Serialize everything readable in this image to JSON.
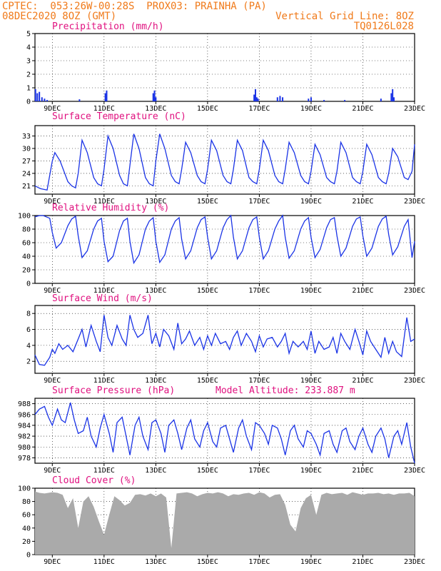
{
  "header": {
    "line1_left": "CPTEC:  053:26W-00:28S  PROX03: PRAINHA (PA)",
    "line2_left": "08DEC2020 8OZ (GMT)",
    "line2_right": "Vertical Grid Line: 8OZ",
    "line3_right": "TQ0126L028"
  },
  "colors": {
    "header": "#f07a1a",
    "title": "#e0107f",
    "line": "#1a33e6",
    "bar": "#1a33e6",
    "cloud": "#aaaaaa"
  },
  "x_tick_labels": [
    "9DEC",
    "11DEC",
    "13DEC",
    "15DEC",
    "17DEC",
    "19DEC",
    "21DEC",
    "23DEC"
  ],
  "chart_data": [
    {
      "type": "bar",
      "title": "Precipitation (mm/h)",
      "ylim": [
        0,
        5
      ],
      "yticks": [
        0,
        1,
        2,
        3,
        4,
        5
      ],
      "xrange_days": [
        8.33,
        23.0
      ],
      "x": [
        8.35,
        8.42,
        8.5,
        8.6,
        8.7,
        8.8,
        10.05,
        11.05,
        11.1,
        12.9,
        12.95,
        13.0,
        16.8,
        16.85,
        16.9,
        16.95,
        17.7,
        17.8,
        17.9,
        18.9,
        19.0,
        19.5,
        20.3,
        21.7,
        22.1,
        22.15,
        22.2
      ],
      "values": [
        0.9,
        0.6,
        0.7,
        0.3,
        0.2,
        0.1,
        0.15,
        0.6,
        0.8,
        0.6,
        0.8,
        0.3,
        0.5,
        0.9,
        0.3,
        0.2,
        0.3,
        0.4,
        0.3,
        0.2,
        0.3,
        0.1,
        0.1,
        0.2,
        0.6,
        0.9,
        0.3
      ]
    },
    {
      "type": "line",
      "title": "Surface Temperature (nC)",
      "ylim": [
        19,
        35.5
      ],
      "yticks": [
        21,
        24,
        27,
        30,
        33
      ],
      "x": [
        8.33,
        8.45,
        8.55,
        8.8,
        9.0,
        9.1,
        9.3,
        9.6,
        9.75,
        9.9,
        10.0,
        10.15,
        10.35,
        10.6,
        10.75,
        10.9,
        11.0,
        11.15,
        11.35,
        11.6,
        11.75,
        11.9,
        12.0,
        12.15,
        12.35,
        12.6,
        12.75,
        12.9,
        13.0,
        13.15,
        13.35,
        13.6,
        13.75,
        13.9,
        14.0,
        14.15,
        14.35,
        14.6,
        14.75,
        14.9,
        15.0,
        15.15,
        15.35,
        15.6,
        15.75,
        15.9,
        16.0,
        16.15,
        16.35,
        16.6,
        16.75,
        16.9,
        17.0,
        17.15,
        17.35,
        17.6,
        17.75,
        17.9,
        18.0,
        18.15,
        18.35,
        18.6,
        18.75,
        18.9,
        19.0,
        19.15,
        19.35,
        19.6,
        19.75,
        19.9,
        20.0,
        20.15,
        20.35,
        20.6,
        20.75,
        20.9,
        21.0,
        21.15,
        21.35,
        21.6,
        21.75,
        21.9,
        22.0,
        22.15,
        22.35,
        22.6,
        22.75,
        22.9,
        23.0
      ],
      "values": [
        21.0,
        20.6,
        20.3,
        20.0,
        27.0,
        29.0,
        27.0,
        22.0,
        21.0,
        20.5,
        24.0,
        32.0,
        29.0,
        23.0,
        21.5,
        21.0,
        25.0,
        33.0,
        30.0,
        23.5,
        21.5,
        21.0,
        26.0,
        33.5,
        30.0,
        23.0,
        21.5,
        21.0,
        27.0,
        33.5,
        30.0,
        23.5,
        22.0,
        21.5,
        25.0,
        31.5,
        29.0,
        23.5,
        22.0,
        21.5,
        25.0,
        32.0,
        29.5,
        23.5,
        22.0,
        21.5,
        25.0,
        32.0,
        29.5,
        23.0,
        22.0,
        21.5,
        25.0,
        32.0,
        29.5,
        23.5,
        22.0,
        21.5,
        25.0,
        31.5,
        29.0,
        23.5,
        22.0,
        21.5,
        24.5,
        31.0,
        28.5,
        23.0,
        22.0,
        21.5,
        24.5,
        31.5,
        29.0,
        23.0,
        22.0,
        21.5,
        24.5,
        31.0,
        28.5,
        23.0,
        22.0,
        21.5,
        24.0,
        30.0,
        28.0,
        23.0,
        22.5,
        24.5,
        31.0
      ]
    },
    {
      "type": "line",
      "title": "Relative Humidity (%)",
      "ylim": [
        0,
        100
      ],
      "yticks": [
        0,
        20,
        40,
        60,
        80,
        100
      ],
      "x": [
        8.33,
        8.5,
        8.65,
        8.9,
        9.0,
        9.15,
        9.35,
        9.6,
        9.75,
        9.9,
        10.0,
        10.15,
        10.35,
        10.6,
        10.75,
        10.9,
        11.0,
        11.15,
        11.35,
        11.6,
        11.75,
        11.9,
        12.0,
        12.15,
        12.35,
        12.6,
        12.75,
        12.9,
        13.0,
        13.15,
        13.35,
        13.6,
        13.75,
        13.9,
        14.0,
        14.15,
        14.35,
        14.6,
        14.75,
        14.9,
        15.0,
        15.15,
        15.35,
        15.6,
        15.75,
        15.9,
        16.0,
        16.15,
        16.35,
        16.6,
        16.75,
        16.9,
        17.0,
        17.15,
        17.35,
        17.6,
        17.75,
        17.9,
        18.0,
        18.15,
        18.35,
        18.6,
        18.75,
        18.9,
        19.0,
        19.15,
        19.35,
        19.6,
        19.75,
        19.9,
        20.0,
        20.15,
        20.35,
        20.6,
        20.75,
        20.9,
        21.0,
        21.15,
        21.35,
        21.6,
        21.75,
        21.9,
        22.0,
        22.15,
        22.35,
        22.6,
        22.75,
        22.9,
        23.0
      ],
      "values": [
        98,
        100,
        100,
        96,
        75,
        52,
        60,
        85,
        95,
        99,
        70,
        38,
        48,
        80,
        92,
        96,
        62,
        32,
        40,
        78,
        92,
        96,
        62,
        30,
        42,
        80,
        92,
        97,
        62,
        31,
        42,
        80,
        92,
        97,
        65,
        36,
        48,
        82,
        94,
        98,
        68,
        36,
        48,
        82,
        94,
        100,
        68,
        36,
        48,
        82,
        94,
        98,
        68,
        36,
        48,
        80,
        92,
        100,
        68,
        37,
        48,
        80,
        92,
        97,
        68,
        38,
        50,
        82,
        94,
        97,
        70,
        40,
        52,
        84,
        95,
        98,
        70,
        40,
        52,
        84,
        95,
        99,
        72,
        42,
        54,
        84,
        94,
        38,
        62
      ]
    },
    {
      "type": "line",
      "title": "Surface Wind (m/s)",
      "ylim": [
        0.5,
        9
      ],
      "yticks": [
        2,
        4,
        6,
        8
      ],
      "x": [
        8.33,
        8.5,
        8.7,
        8.9,
        9.0,
        9.1,
        9.25,
        9.4,
        9.6,
        9.8,
        10.0,
        10.15,
        10.3,
        10.5,
        10.7,
        10.85,
        11.0,
        11.15,
        11.3,
        11.5,
        11.7,
        11.85,
        12.0,
        12.15,
        12.3,
        12.5,
        12.7,
        12.85,
        13.0,
        13.15,
        13.3,
        13.5,
        13.7,
        13.85,
        14.0,
        14.15,
        14.3,
        14.5,
        14.7,
        14.85,
        15.0,
        15.15,
        15.3,
        15.5,
        15.7,
        15.85,
        16.0,
        16.15,
        16.3,
        16.5,
        16.7,
        16.85,
        17.0,
        17.15,
        17.3,
        17.5,
        17.7,
        17.85,
        18.0,
        18.15,
        18.3,
        18.5,
        18.7,
        18.85,
        19.0,
        19.15,
        19.3,
        19.5,
        19.7,
        19.85,
        20.0,
        20.15,
        20.3,
        20.5,
        20.7,
        20.85,
        21.0,
        21.15,
        21.3,
        21.5,
        21.7,
        21.85,
        22.0,
        22.15,
        22.3,
        22.5,
        22.7,
        22.85,
        23.0
      ],
      "values": [
        2.8,
        1.6,
        1.5,
        2.5,
        3.5,
        3.0,
        4.2,
        3.5,
        4.0,
        3.2,
        4.8,
        6.0,
        3.8,
        6.5,
        4.5,
        3.2,
        7.8,
        5.0,
        4.0,
        6.5,
        4.8,
        4.0,
        7.8,
        6.0,
        5.0,
        5.5,
        7.8,
        4.2,
        5.5,
        3.8,
        6.0,
        5.2,
        3.5,
        6.8,
        4.2,
        4.8,
        5.8,
        4.0,
        5.0,
        3.5,
        5.2,
        4.0,
        5.5,
        4.2,
        4.5,
        3.5,
        5.0,
        5.8,
        4.0,
        5.5,
        4.5,
        3.2,
        5.2,
        3.8,
        4.8,
        5.0,
        3.8,
        4.5,
        5.5,
        3.0,
        4.5,
        3.8,
        4.5,
        3.5,
        5.8,
        3.0,
        4.5,
        3.5,
        3.8,
        5.0,
        3.0,
        5.5,
        4.5,
        3.5,
        6.0,
        4.5,
        2.8,
        5.8,
        4.5,
        3.5,
        2.5,
        5.0,
        3.0,
        4.5,
        3.2,
        2.6,
        7.5,
        4.5,
        4.8
      ]
    },
    {
      "type": "line",
      "title": "Surface Pressure (hPa)",
      "annotation": "Model Altitude: 233.887  m",
      "ylim": [
        977,
        989
      ],
      "yticks": [
        978,
        980,
        982,
        984,
        986,
        988
      ],
      "x": [
        8.33,
        8.5,
        8.7,
        8.85,
        9.0,
        9.2,
        9.35,
        9.5,
        9.7,
        9.85,
        10.0,
        10.2,
        10.35,
        10.5,
        10.7,
        10.85,
        11.0,
        11.2,
        11.35,
        11.5,
        11.7,
        11.85,
        12.0,
        12.2,
        12.35,
        12.5,
        12.7,
        12.85,
        13.0,
        13.2,
        13.35,
        13.5,
        13.7,
        13.85,
        14.0,
        14.2,
        14.35,
        14.5,
        14.7,
        14.85,
        15.0,
        15.2,
        15.35,
        15.5,
        15.7,
        15.85,
        16.0,
        16.2,
        16.35,
        16.5,
        16.7,
        16.85,
        17.0,
        17.2,
        17.35,
        17.5,
        17.7,
        17.85,
        18.0,
        18.2,
        18.35,
        18.5,
        18.7,
        18.85,
        19.0,
        19.2,
        19.35,
        19.5,
        19.7,
        19.85,
        20.0,
        20.2,
        20.35,
        20.5,
        20.7,
        20.85,
        21.0,
        21.2,
        21.35,
        21.5,
        21.7,
        21.85,
        22.0,
        22.2,
        22.35,
        22.5,
        22.7,
        22.85,
        23.0
      ],
      "values": [
        986.0,
        987.0,
        987.5,
        985.5,
        984.0,
        987.0,
        985.0,
        984.5,
        988.2,
        985.0,
        982.5,
        983.0,
        985.5,
        982.0,
        980.0,
        983.5,
        986.0,
        982.5,
        979.0,
        984.5,
        985.5,
        982.0,
        978.5,
        984.0,
        985.5,
        982.0,
        979.5,
        984.5,
        985.0,
        982.5,
        979.0,
        984.0,
        985.0,
        982.5,
        979.5,
        983.5,
        985.0,
        981.5,
        980.0,
        983.0,
        984.5,
        981.0,
        980.0,
        983.5,
        984.0,
        981.5,
        979.0,
        983.5,
        985.0,
        982.0,
        979.5,
        984.5,
        984.0,
        982.5,
        980.5,
        984.0,
        983.5,
        981.5,
        978.5,
        983.0,
        984.0,
        981.5,
        980.0,
        983.0,
        982.5,
        980.5,
        978.5,
        982.5,
        983.0,
        980.5,
        979.0,
        983.0,
        983.5,
        981.0,
        979.5,
        982.0,
        983.5,
        980.5,
        979.0,
        982.0,
        983.5,
        981.5,
        978.0,
        982.0,
        983.0,
        980.5,
        984.5,
        980.0,
        977.0
      ]
    },
    {
      "type": "area",
      "title": "Cloud Cover (%)",
      "ylim": [
        0,
        100
      ],
      "yticks": [
        0,
        20,
        40,
        60,
        80,
        100
      ],
      "x": [
        8.33,
        8.5,
        8.7,
        9.0,
        9.2,
        9.4,
        9.6,
        9.8,
        10.0,
        10.2,
        10.4,
        10.6,
        10.8,
        11.0,
        11.2,
        11.4,
        11.6,
        11.8,
        12.0,
        12.2,
        12.4,
        12.6,
        12.8,
        13.0,
        13.2,
        13.4,
        13.6,
        13.8,
        14.0,
        14.2,
        14.4,
        14.6,
        14.8,
        15.0,
        15.2,
        15.4,
        15.6,
        15.8,
        16.0,
        16.2,
        16.4,
        16.6,
        16.8,
        17.0,
        17.2,
        17.4,
        17.6,
        17.8,
        18.0,
        18.2,
        18.4,
        18.6,
        18.8,
        19.0,
        19.2,
        19.4,
        19.6,
        19.8,
        20.0,
        20.2,
        20.4,
        20.6,
        20.8,
        21.0,
        21.2,
        21.4,
        21.6,
        21.8,
        22.0,
        22.2,
        22.4,
        22.6,
        22.8,
        23.0
      ],
      "values": [
        95,
        93,
        92,
        94,
        93,
        90,
        70,
        85,
        40,
        80,
        88,
        72,
        50,
        30,
        60,
        88,
        82,
        74,
        78,
        90,
        91,
        89,
        92,
        88,
        92,
        86,
        10,
        92,
        93,
        94,
        92,
        88,
        91,
        93,
        92,
        94,
        92,
        88,
        91,
        90,
        92,
        93,
        90,
        94,
        92,
        86,
        90,
        91,
        75,
        45,
        35,
        70,
        85,
        90,
        60,
        90,
        93,
        91,
        92,
        93,
        90,
        94,
        92,
        90,
        92,
        92,
        93,
        91,
        92,
        90,
        92,
        92,
        93,
        88
      ]
    }
  ]
}
